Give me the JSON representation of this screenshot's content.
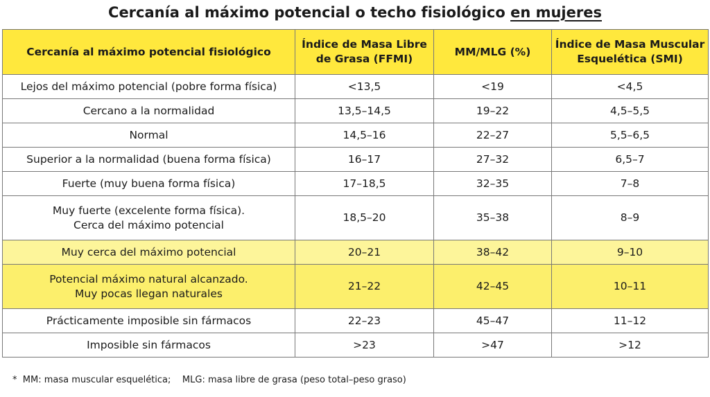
{
  "header": {
    "title": "Cercanía al máximo potencial o techo fisiológico",
    "title_emphasis": "en mujeres"
  },
  "table": {
    "columns": [
      [
        "Cercanía al máximo potencial fisiológico"
      ],
      [
        "Índice de Masa Libre",
        "de Grasa (FFMI)"
      ],
      [
        "MM/MLG (%)"
      ],
      [
        "Índice de Masa Muscular",
        "Esquelética (SMI)"
      ]
    ],
    "rows": [
      [
        [
          "Lejos del máximo potencial (pobre forma física)"
        ],
        [
          "<13,5"
        ],
        [
          "<19"
        ],
        [
          "<4,5"
        ]
      ],
      [
        [
          "Cercano a la normalidad"
        ],
        [
          "13,5–14,5"
        ],
        [
          "19–22"
        ],
        [
          "4,5–5,5"
        ]
      ],
      [
        [
          "Normal"
        ],
        [
          "14,5–16"
        ],
        [
          "22–27"
        ],
        [
          "5,5–6,5"
        ]
      ],
      [
        [
          "Superior a la normalidad (buena forma física)"
        ],
        [
          "16–17"
        ],
        [
          "27–32"
        ],
        [
          "6,5–7"
        ]
      ],
      [
        [
          "Fuerte (muy buena forma física)"
        ],
        [
          "17–18,5"
        ],
        [
          "32–35"
        ],
        [
          "7–8"
        ]
      ],
      [
        [
          "Muy fuerte (excelente forma física).",
          "Cerca del máximo potencial"
        ],
        [
          "18,5–20"
        ],
        [
          "35–38"
        ],
        [
          "8–9"
        ]
      ],
      [
        [
          "Muy cerca del máximo potencial"
        ],
        [
          "20–21"
        ],
        [
          "38–42"
        ],
        [
          "9–10"
        ]
      ],
      [
        [
          "Potencial máximo natural alcanzado.",
          "Muy pocas llegan naturales"
        ],
        [
          "21–22"
        ],
        [
          "42–45"
        ],
        [
          "10–11"
        ]
      ],
      [
        [
          "Prácticamente imposible sin fármacos"
        ],
        [
          "22–23"
        ],
        [
          "45–47"
        ],
        [
          "11–12"
        ]
      ],
      [
        [
          "Imposible sin fármacos"
        ],
        [
          ">23"
        ],
        [
          ">47"
        ],
        [
          ">12"
        ]
      ]
    ]
  },
  "footnote": "*  MM: masa muscular esquelética;    MLG: masa libre de grasa (peso total–peso graso)"
}
